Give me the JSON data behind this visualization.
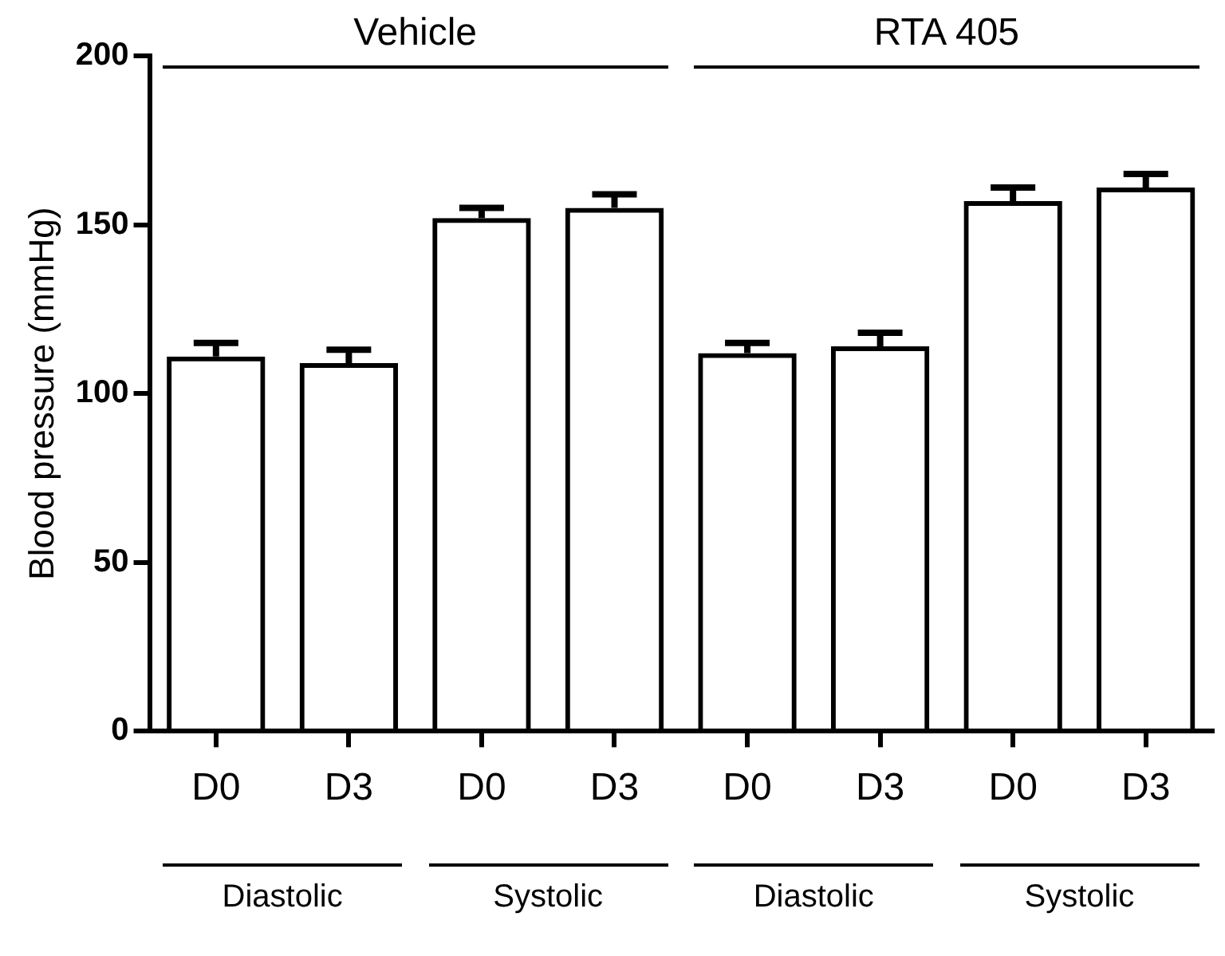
{
  "chart_data": {
    "type": "bar",
    "ylabel": "Blood pressure (mmHg)",
    "categories": [
      "D0",
      "D3",
      "D0",
      "D3",
      "D0",
      "D3",
      "D0",
      "D3"
    ],
    "values": [
      111,
      109,
      152,
      155,
      112,
      114,
      157,
      161
    ],
    "errors": [
      4,
      4,
      3,
      4,
      3,
      4,
      4,
      4
    ],
    "color": "#000000",
    "ylim": [
      0,
      200
    ],
    "yticks": [
      0,
      50,
      100,
      150,
      200
    ],
    "grid": false,
    "annotations": [
      "Vehicle",
      "RTA 405",
      "Diastolic",
      "Systolic",
      "Diastolic",
      "Systolic"
    ]
  }
}
